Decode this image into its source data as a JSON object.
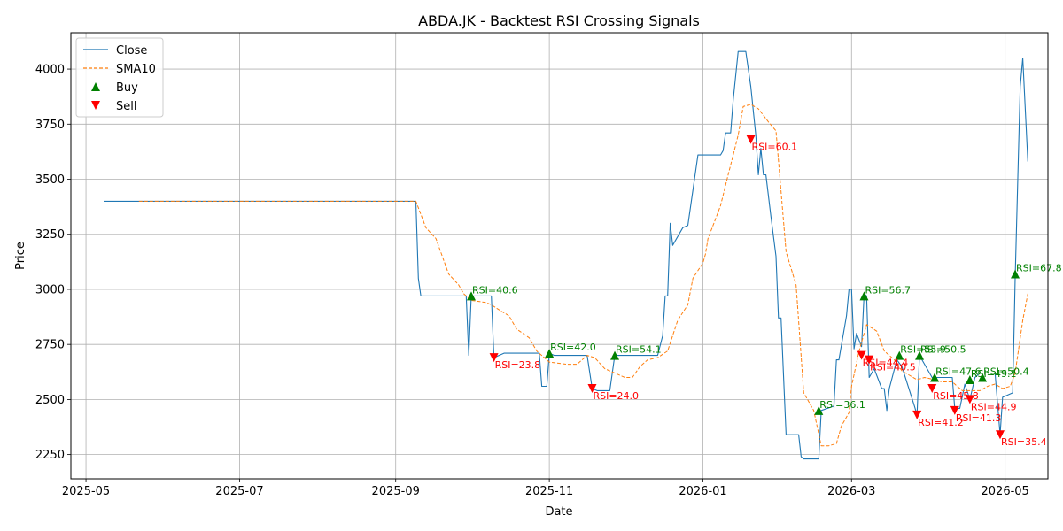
{
  "chart_data": {
    "type": "line",
    "title": "ABDA.JK - Backtest RSI Crossing Signals",
    "xlabel": "Date",
    "ylabel": "Price",
    "xlim": [
      "2025-04-25",
      "2026-05-18"
    ],
    "ylim": [
      2140,
      4165
    ],
    "x_ticks": [
      {
        "date": "2025-05-01",
        "label": "2025-05"
      },
      {
        "date": "2025-07-01",
        "label": "2025-07"
      },
      {
        "date": "2025-09-01",
        "label": "2025-09"
      },
      {
        "date": "2025-11-01",
        "label": "2025-11"
      },
      {
        "date": "2026-01-01",
        "label": "2026-01"
      },
      {
        "date": "2026-03-01",
        "label": "2026-03"
      },
      {
        "date": "2026-05-01",
        "label": "2026-05"
      }
    ],
    "y_ticks": [
      2250,
      2500,
      2750,
      3000,
      3250,
      3500,
      3750,
      4000
    ],
    "grid": true,
    "legend_position": "top-left",
    "colors": {
      "close": "#1f77b4",
      "sma": "#ff7f0e",
      "buy": "green",
      "sell": "red"
    },
    "series": [
      {
        "name": "Close",
        "style": "solid",
        "points": [
          [
            "2025-05-08",
            3400
          ],
          [
            "2025-09-09",
            3400
          ],
          [
            "2025-09-10",
            3050
          ],
          [
            "2025-09-11",
            2970
          ],
          [
            "2025-09-25",
            2970
          ],
          [
            "2025-09-29",
            2970
          ],
          [
            "2025-09-30",
            2700
          ],
          [
            "2025-10-01",
            2970
          ],
          [
            "2025-10-09",
            2970
          ],
          [
            "2025-10-10",
            2690
          ],
          [
            "2025-10-12",
            2700
          ],
          [
            "2025-10-14",
            2710
          ],
          [
            "2025-10-28",
            2710
          ],
          [
            "2025-10-29",
            2560
          ],
          [
            "2025-10-31",
            2560
          ],
          [
            "2025-11-01",
            2710
          ],
          [
            "2025-11-03",
            2700
          ],
          [
            "2025-11-16",
            2700
          ],
          [
            "2025-11-18",
            2550
          ],
          [
            "2025-11-20",
            2540
          ],
          [
            "2025-11-25",
            2540
          ],
          [
            "2025-11-27",
            2700
          ],
          [
            "2025-12-14",
            2700
          ],
          [
            "2025-12-16",
            2790
          ],
          [
            "2025-12-17",
            2970
          ],
          [
            "2025-12-18",
            2970
          ],
          [
            "2025-12-19",
            3300
          ],
          [
            "2025-12-20",
            3200
          ],
          [
            "2025-12-24",
            3280
          ],
          [
            "2025-12-26",
            3290
          ],
          [
            "2025-12-28",
            3450
          ],
          [
            "2025-12-30",
            3610
          ],
          [
            "2026-01-08",
            3610
          ],
          [
            "2026-01-09",
            3630
          ],
          [
            "2026-01-10",
            3710
          ],
          [
            "2026-01-12",
            3710
          ],
          [
            "2026-01-13",
            3860
          ],
          [
            "2026-01-15",
            4080
          ],
          [
            "2026-01-18",
            4080
          ],
          [
            "2026-01-20",
            3920
          ],
          [
            "2026-01-22",
            3700
          ],
          [
            "2026-01-23",
            3520
          ],
          [
            "2026-01-24",
            3640
          ],
          [
            "2026-01-25",
            3520
          ],
          [
            "2026-01-26",
            3520
          ],
          [
            "2026-01-28",
            3330
          ],
          [
            "2026-01-30",
            3150
          ],
          [
            "2026-01-31",
            2870
          ],
          [
            "2026-02-01",
            2870
          ],
          [
            "2026-02-03",
            2340
          ],
          [
            "2026-02-08",
            2340
          ],
          [
            "2026-02-09",
            2240
          ],
          [
            "2026-02-10",
            2230
          ],
          [
            "2026-02-16",
            2230
          ],
          [
            "2026-02-17",
            2450
          ],
          [
            "2026-02-22",
            2470
          ],
          [
            "2026-02-23",
            2680
          ],
          [
            "2026-02-24",
            2680
          ],
          [
            "2026-02-27",
            2880
          ],
          [
            "2026-02-28",
            3000
          ],
          [
            "2026-03-01",
            3000
          ],
          [
            "2026-03-02",
            2730
          ],
          [
            "2026-03-03",
            2800
          ],
          [
            "2026-03-05",
            2740
          ],
          [
            "2026-03-06",
            2980
          ],
          [
            "2026-03-07",
            2970
          ],
          [
            "2026-03-08",
            2600
          ],
          [
            "2026-03-10",
            2640
          ],
          [
            "2026-03-13",
            2550
          ],
          [
            "2026-03-14",
            2550
          ],
          [
            "2026-03-15",
            2450
          ],
          [
            "2026-03-16",
            2550
          ],
          [
            "2026-03-19",
            2680
          ],
          [
            "2026-03-21",
            2650
          ],
          [
            "2026-03-26",
            2470
          ],
          [
            "2026-03-27",
            2430
          ],
          [
            "2026-03-28",
            2700
          ],
          [
            "2026-04-02",
            2600
          ],
          [
            "2026-04-05",
            2600
          ],
          [
            "2026-04-10",
            2600
          ],
          [
            "2026-04-11",
            2460
          ],
          [
            "2026-04-13",
            2460
          ],
          [
            "2026-04-15",
            2570
          ],
          [
            "2026-04-17",
            2500
          ],
          [
            "2026-04-19",
            2600
          ],
          [
            "2026-04-21",
            2620
          ],
          [
            "2026-04-24",
            2620
          ],
          [
            "2026-04-27",
            2620
          ],
          [
            "2026-04-29",
            2340
          ],
          [
            "2026-04-30",
            2510
          ],
          [
            "2026-05-04",
            2530
          ],
          [
            "2026-05-05",
            3050
          ],
          [
            "2026-05-07",
            3920
          ],
          [
            "2026-05-08",
            4050
          ],
          [
            "2026-05-10",
            3580
          ]
        ]
      },
      {
        "name": "SMA10",
        "style": "dashed",
        "points": [
          [
            "2025-05-22",
            3400
          ],
          [
            "2025-09-09",
            3400
          ],
          [
            "2025-09-13",
            3280
          ],
          [
            "2025-09-17",
            3230
          ],
          [
            "2025-09-22",
            3070
          ],
          [
            "2025-09-26",
            3020
          ],
          [
            "2025-09-28",
            2980
          ],
          [
            "2025-10-01",
            2950
          ],
          [
            "2025-10-07",
            2940
          ],
          [
            "2025-10-09",
            2930
          ],
          [
            "2025-10-13",
            2900
          ],
          [
            "2025-10-16",
            2880
          ],
          [
            "2025-10-19",
            2820
          ],
          [
            "2025-10-24",
            2780
          ],
          [
            "2025-10-27",
            2720
          ],
          [
            "2025-11-01",
            2670
          ],
          [
            "2025-11-08",
            2660
          ],
          [
            "2025-11-12",
            2660
          ],
          [
            "2025-11-16",
            2700
          ],
          [
            "2025-11-19",
            2690
          ],
          [
            "2025-11-23",
            2640
          ],
          [
            "2025-11-27",
            2620
          ],
          [
            "2025-12-01",
            2600
          ],
          [
            "2025-12-04",
            2600
          ],
          [
            "2025-12-07",
            2650
          ],
          [
            "2025-12-10",
            2680
          ],
          [
            "2025-12-14",
            2690
          ],
          [
            "2025-12-18",
            2720
          ],
          [
            "2025-12-22",
            2860
          ],
          [
            "2025-12-26",
            2930
          ],
          [
            "2025-12-28",
            3050
          ],
          [
            "2026-01-01",
            3120
          ],
          [
            "2026-01-02",
            3160
          ],
          [
            "2026-01-03",
            3230
          ],
          [
            "2026-01-06",
            3320
          ],
          [
            "2026-01-08",
            3380
          ],
          [
            "2026-01-11",
            3520
          ],
          [
            "2026-01-13",
            3610
          ],
          [
            "2026-01-15",
            3700
          ],
          [
            "2026-01-17",
            3830
          ],
          [
            "2026-01-20",
            3840
          ],
          [
            "2026-01-23",
            3820
          ],
          [
            "2026-01-27",
            3760
          ],
          [
            "2026-01-30",
            3720
          ],
          [
            "2026-02-03",
            3170
          ],
          [
            "2026-02-07",
            3020
          ],
          [
            "2026-02-10",
            2530
          ],
          [
            "2026-02-14",
            2450
          ],
          [
            "2026-02-17",
            2290
          ],
          [
            "2026-02-20",
            2290
          ],
          [
            "2026-02-23",
            2300
          ],
          [
            "2026-02-25",
            2380
          ],
          [
            "2026-02-28",
            2440
          ],
          [
            "2026-03-01",
            2560
          ],
          [
            "2026-03-04",
            2720
          ],
          [
            "2026-03-07",
            2840
          ],
          [
            "2026-03-11",
            2810
          ],
          [
            "2026-03-14",
            2720
          ],
          [
            "2026-03-18",
            2680
          ],
          [
            "2026-03-21",
            2630
          ],
          [
            "2026-03-24",
            2610
          ],
          [
            "2026-03-27",
            2590
          ],
          [
            "2026-03-30",
            2600
          ],
          [
            "2026-04-03",
            2590
          ],
          [
            "2026-04-06",
            2580
          ],
          [
            "2026-04-10",
            2580
          ],
          [
            "2026-04-14",
            2540
          ],
          [
            "2026-04-17",
            2540
          ],
          [
            "2026-04-21",
            2540
          ],
          [
            "2026-04-24",
            2560
          ],
          [
            "2026-04-27",
            2570
          ],
          [
            "2026-04-30",
            2550
          ],
          [
            "2026-05-03",
            2560
          ],
          [
            "2026-05-05",
            2620
          ],
          [
            "2026-05-08",
            2860
          ],
          [
            "2026-05-10",
            2980
          ]
        ]
      }
    ],
    "signals": {
      "buy": [
        {
          "date": "2025-10-01",
          "price": 2970,
          "label": "RSI=40.6"
        },
        {
          "date": "2025-11-01",
          "price": 2710,
          "label": "RSI=42.0"
        },
        {
          "date": "2025-11-27",
          "price": 2700,
          "label": "RSI=54.1"
        },
        {
          "date": "2026-02-16",
          "price": 2450,
          "label": "RSI=36.1"
        },
        {
          "date": "2026-03-06",
          "price": 2970,
          "label": "RSI=56.7"
        },
        {
          "date": "2026-03-20",
          "price": 2700,
          "label": "RSI=55.9"
        },
        {
          "date": "2026-03-28",
          "price": 2700,
          "label": "RSI=50.5"
        },
        {
          "date": "2026-04-03",
          "price": 2600,
          "label": "RSI=47.6"
        },
        {
          "date": "2026-04-17",
          "price": 2590,
          "label": "RSI=49.1"
        },
        {
          "date": "2026-04-22",
          "price": 2600,
          "label": "RSI=50.4"
        },
        {
          "date": "2026-05-05",
          "price": 3070,
          "label": "RSI=67.8"
        }
      ],
      "sell": [
        {
          "date": "2025-10-10",
          "price": 2690,
          "label": "RSI=23.8"
        },
        {
          "date": "2025-11-18",
          "price": 2550,
          "label": "RSI=24.0"
        },
        {
          "date": "2026-01-20",
          "price": 3680,
          "label": "RSI=60.1"
        },
        {
          "date": "2026-03-05",
          "price": 2700,
          "label": "RSI=44.4"
        },
        {
          "date": "2026-03-08",
          "price": 2680,
          "label": "RSI=40.5"
        },
        {
          "date": "2026-03-27",
          "price": 2430,
          "label": "RSI=41.2"
        },
        {
          "date": "2026-04-02",
          "price": 2550,
          "label": "RSI=45.8"
        },
        {
          "date": "2026-04-11",
          "price": 2450,
          "label": "RSI=41.3"
        },
        {
          "date": "2026-04-17",
          "price": 2500,
          "label": "RSI=44.9"
        },
        {
          "date": "2026-04-29",
          "price": 2340,
          "label": "RSI=35.4"
        }
      ]
    },
    "legend": [
      "Close",
      "SMA10",
      "Buy",
      "Sell"
    ]
  }
}
